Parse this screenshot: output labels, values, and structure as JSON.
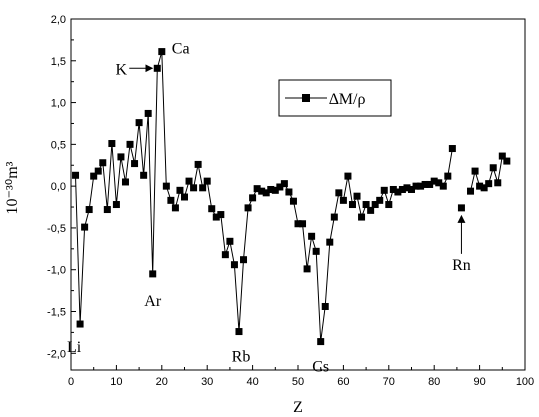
{
  "chart_data": {
    "type": "line",
    "xlabel": "Z",
    "ylabel": "10⁻³⁰m³",
    "xlim": [
      0,
      100
    ],
    "ylim": [
      -2.2,
      2.0
    ],
    "xticks": [
      0,
      10,
      20,
      30,
      40,
      50,
      60,
      70,
      80,
      90,
      100
    ],
    "yticks": [
      2.0,
      1.5,
      1.0,
      0.5,
      0.0,
      -0.5,
      -1.0,
      -1.5,
      -2.0
    ],
    "ytick_labels": [
      "2,0",
      "1,5",
      "1,0",
      "0,5",
      "0,0",
      "-0,5",
      "-1,0",
      "-1,5",
      "-2,0"
    ],
    "grid": false,
    "legend_position": "top-right",
    "series": [
      {
        "name": "∆M/ρ",
        "marker": "square",
        "color": "#000000",
        "segments": [
          {
            "x": [
              1,
              2,
              3,
              4,
              5,
              6,
              7,
              8,
              9,
              10,
              11,
              12,
              13,
              14,
              15,
              16,
              17,
              18,
              19,
              20,
              21,
              22,
              23,
              24,
              25,
              26,
              27,
              28,
              29,
              30,
              31,
              32,
              33,
              34,
              35,
              36,
              37,
              38,
              39,
              40,
              41,
              42,
              43,
              44,
              45,
              46,
              47,
              48,
              49,
              50,
              51,
              52,
              53,
              54,
              55,
              56,
              57,
              58,
              59,
              60,
              61,
              62,
              63,
              64,
              65,
              66,
              67,
              68,
              69,
              70,
              71,
              72,
              73,
              74,
              75,
              76,
              77,
              78,
              79,
              80,
              81,
              82,
              83,
              84
            ],
            "y": [
              0.13,
              -1.65,
              -0.49,
              -0.28,
              0.12,
              0.18,
              0.28,
              -0.28,
              0.51,
              -0.22,
              0.35,
              0.05,
              0.5,
              0.27,
              0.76,
              0.13,
              0.87,
              -1.05,
              1.41,
              1.61,
              0.0,
              -0.17,
              -0.26,
              -0.05,
              -0.13,
              0.06,
              -0.02,
              0.26,
              -0.02,
              0.06,
              -0.27,
              -0.37,
              -0.34,
              -0.82,
              -0.66,
              -0.94,
              -1.74,
              -0.88,
              -0.26,
              -0.14,
              -0.03,
              -0.06,
              -0.08,
              -0.04,
              -0.05,
              -0.01,
              0.03,
              -0.07,
              -0.18,
              -0.45,
              -0.45,
              -0.99,
              -0.6,
              -0.78,
              -1.86,
              -1.44,
              -0.67,
              -0.37,
              -0.08,
              -0.17,
              0.12,
              -0.22,
              -0.12,
              -0.37,
              -0.22,
              -0.29,
              -0.22,
              -0.17,
              -0.05,
              -0.22,
              -0.04,
              -0.07,
              -0.04,
              -0.02,
              -0.04,
              0.0,
              0.0,
              0.02,
              0.02,
              0.06,
              0.04,
              0.0,
              0.12,
              0.45
            ]
          },
          {
            "x": [
              86
            ],
            "y": [
              -0.26
            ]
          },
          {
            "x": [
              88,
              89,
              90,
              91,
              92,
              93,
              94,
              95,
              96
            ],
            "y": [
              -0.06,
              0.18,
              0.0,
              -0.02,
              0.03,
              0.22,
              0.04,
              0.36,
              0.3
            ]
          }
        ]
      }
    ],
    "annotations": [
      {
        "text": "Li",
        "x": 2,
        "y": -1.65
      },
      {
        "text": "Ar",
        "x": 18,
        "y": -1.05
      },
      {
        "text": "K",
        "x": 19,
        "y": 1.41,
        "arrow": true
      },
      {
        "text": "Ca",
        "x": 20,
        "y": 1.61
      },
      {
        "text": "Rb",
        "x": 37,
        "y": -1.74
      },
      {
        "text": "Cs",
        "x": 55,
        "y": -1.86
      },
      {
        "text": "Rn",
        "x": 86,
        "y": -0.26,
        "arrow": true
      }
    ]
  }
}
